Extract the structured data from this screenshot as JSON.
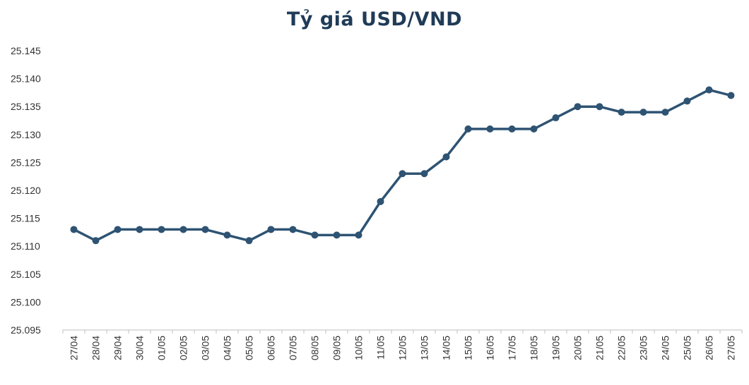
{
  "chart_data": {
    "type": "line",
    "title": "Tỷ giá USD/VND",
    "xlabel": "",
    "ylabel": "",
    "categories": [
      "27/04",
      "28/04",
      "29/04",
      "30/04",
      "01/05",
      "02/05",
      "03/05",
      "04/05",
      "05/05",
      "06/05",
      "07/05",
      "08/05",
      "09/05",
      "10/05",
      "11/05",
      "12/05",
      "13/05",
      "14/05",
      "15/05",
      "16/05",
      "17/05",
      "18/05",
      "19/05",
      "20/05",
      "21/05",
      "22/05",
      "23/05",
      "24/05",
      "25/05",
      "26/05",
      "27/05"
    ],
    "values": [
      25113,
      25111,
      25113,
      25113,
      25113,
      25113,
      25113,
      25112,
      25111,
      25113,
      25113,
      25112,
      25112,
      25112,
      25118,
      25123,
      25123,
      25126,
      25131,
      25131,
      25131,
      25131,
      25133,
      25135,
      25135,
      25134,
      25134,
      25134,
      25136,
      25138,
      25137
    ],
    "ylim": [
      25095,
      25145
    ],
    "yticks": [
      25095,
      25100,
      25105,
      25110,
      25115,
      25120,
      25125,
      25130,
      25135,
      25140,
      25145
    ],
    "ytick_labels": [
      "25.095",
      "25.100",
      "25.105",
      "25.110",
      "25.115",
      "25.120",
      "25.125",
      "25.130",
      "25.135",
      "25.140",
      "25.145"
    ],
    "grid": false,
    "color": "#2e5373"
  }
}
